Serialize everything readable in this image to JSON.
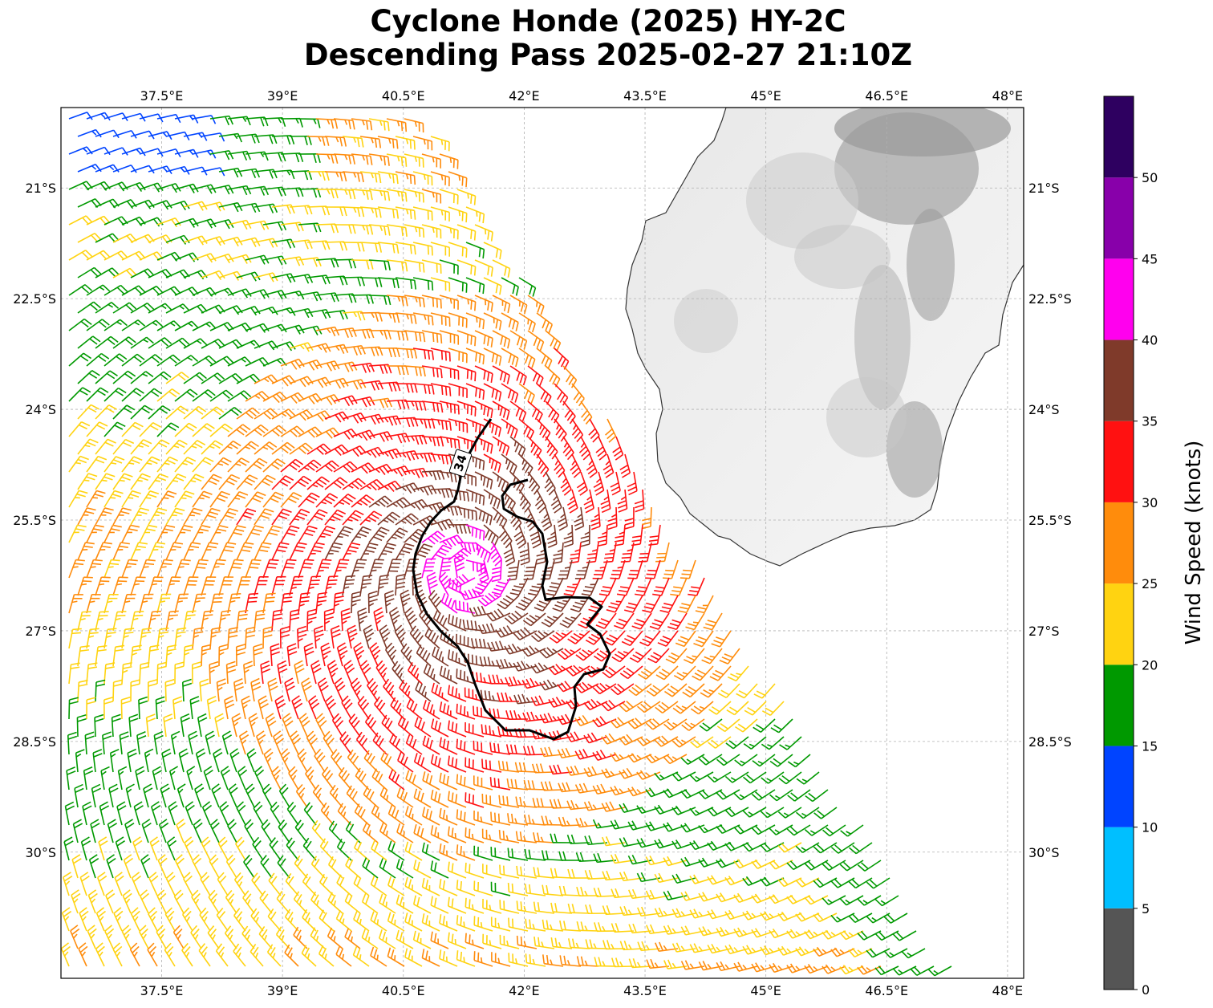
{
  "title": {
    "line1": "Cyclone Honde (2025) HY-2C",
    "line2": "Descending Pass 2025-02-27 21:10Z"
  },
  "map": {
    "lon_range": [
      36.25,
      48.2
    ],
    "lat_range": [
      -31.71,
      -19.91
    ],
    "lon_ticks": [
      {
        "value": 37.5,
        "label": "37.5°E"
      },
      {
        "value": 39,
        "label": "39°E"
      },
      {
        "value": 40.5,
        "label": "40.5°E"
      },
      {
        "value": 42,
        "label": "42°E"
      },
      {
        "value": 43.5,
        "label": "43.5°E"
      },
      {
        "value": 45,
        "label": "45°E"
      },
      {
        "value": 46.5,
        "label": "46.5°E"
      },
      {
        "value": 48,
        "label": "48°E"
      }
    ],
    "lat_ticks": [
      {
        "value": -21,
        "label": "21°S"
      },
      {
        "value": -22.5,
        "label": "22.5°S"
      },
      {
        "value": -24,
        "label": "24°S"
      },
      {
        "value": -25.5,
        "label": "25.5°S"
      },
      {
        "value": -27,
        "label": "27°S"
      },
      {
        "value": -28.5,
        "label": "28.5°S"
      },
      {
        "value": -30,
        "label": "30°S"
      }
    ],
    "gridlines": true,
    "land": "Madagascar (southern part), grayscale terrain shading",
    "contour": {
      "level": 34,
      "label": "34"
    },
    "center_approx": {
      "lon": 41.3,
      "lat": -26.2
    },
    "swath_east_edge": {
      "lon_top": 40.7,
      "lat_top": -19.91,
      "lon_bottom": 47.5,
      "lat_bottom": -31.71
    }
  },
  "colorbar": {
    "title": "Wind Speed (knots)",
    "bins": [
      {
        "min": 0,
        "max": 5,
        "color": "#555555"
      },
      {
        "min": 5,
        "max": 10,
        "color": "#00bfff"
      },
      {
        "min": 10,
        "max": 15,
        "color": "#0044ff"
      },
      {
        "min": 15,
        "max": 20,
        "color": "#009900"
      },
      {
        "min": 20,
        "max": 25,
        "color": "#ffd311"
      },
      {
        "min": 25,
        "max": 30,
        "color": "#ff8c0c"
      },
      {
        "min": 30,
        "max": 35,
        "color": "#ff1111"
      },
      {
        "min": 35,
        "max": 40,
        "color": "#7f3a2a"
      },
      {
        "min": 40,
        "max": 45,
        "color": "#ff00ee"
      },
      {
        "min": 45,
        "max": 50,
        "color": "#8800aa"
      },
      {
        "min": 50,
        "max": 55,
        "color": "#2e0060"
      }
    ],
    "tick_labels": [
      "0",
      "5",
      "10",
      "15",
      "20",
      "25",
      "30",
      "35",
      "40",
      "45",
      "50"
    ]
  }
}
